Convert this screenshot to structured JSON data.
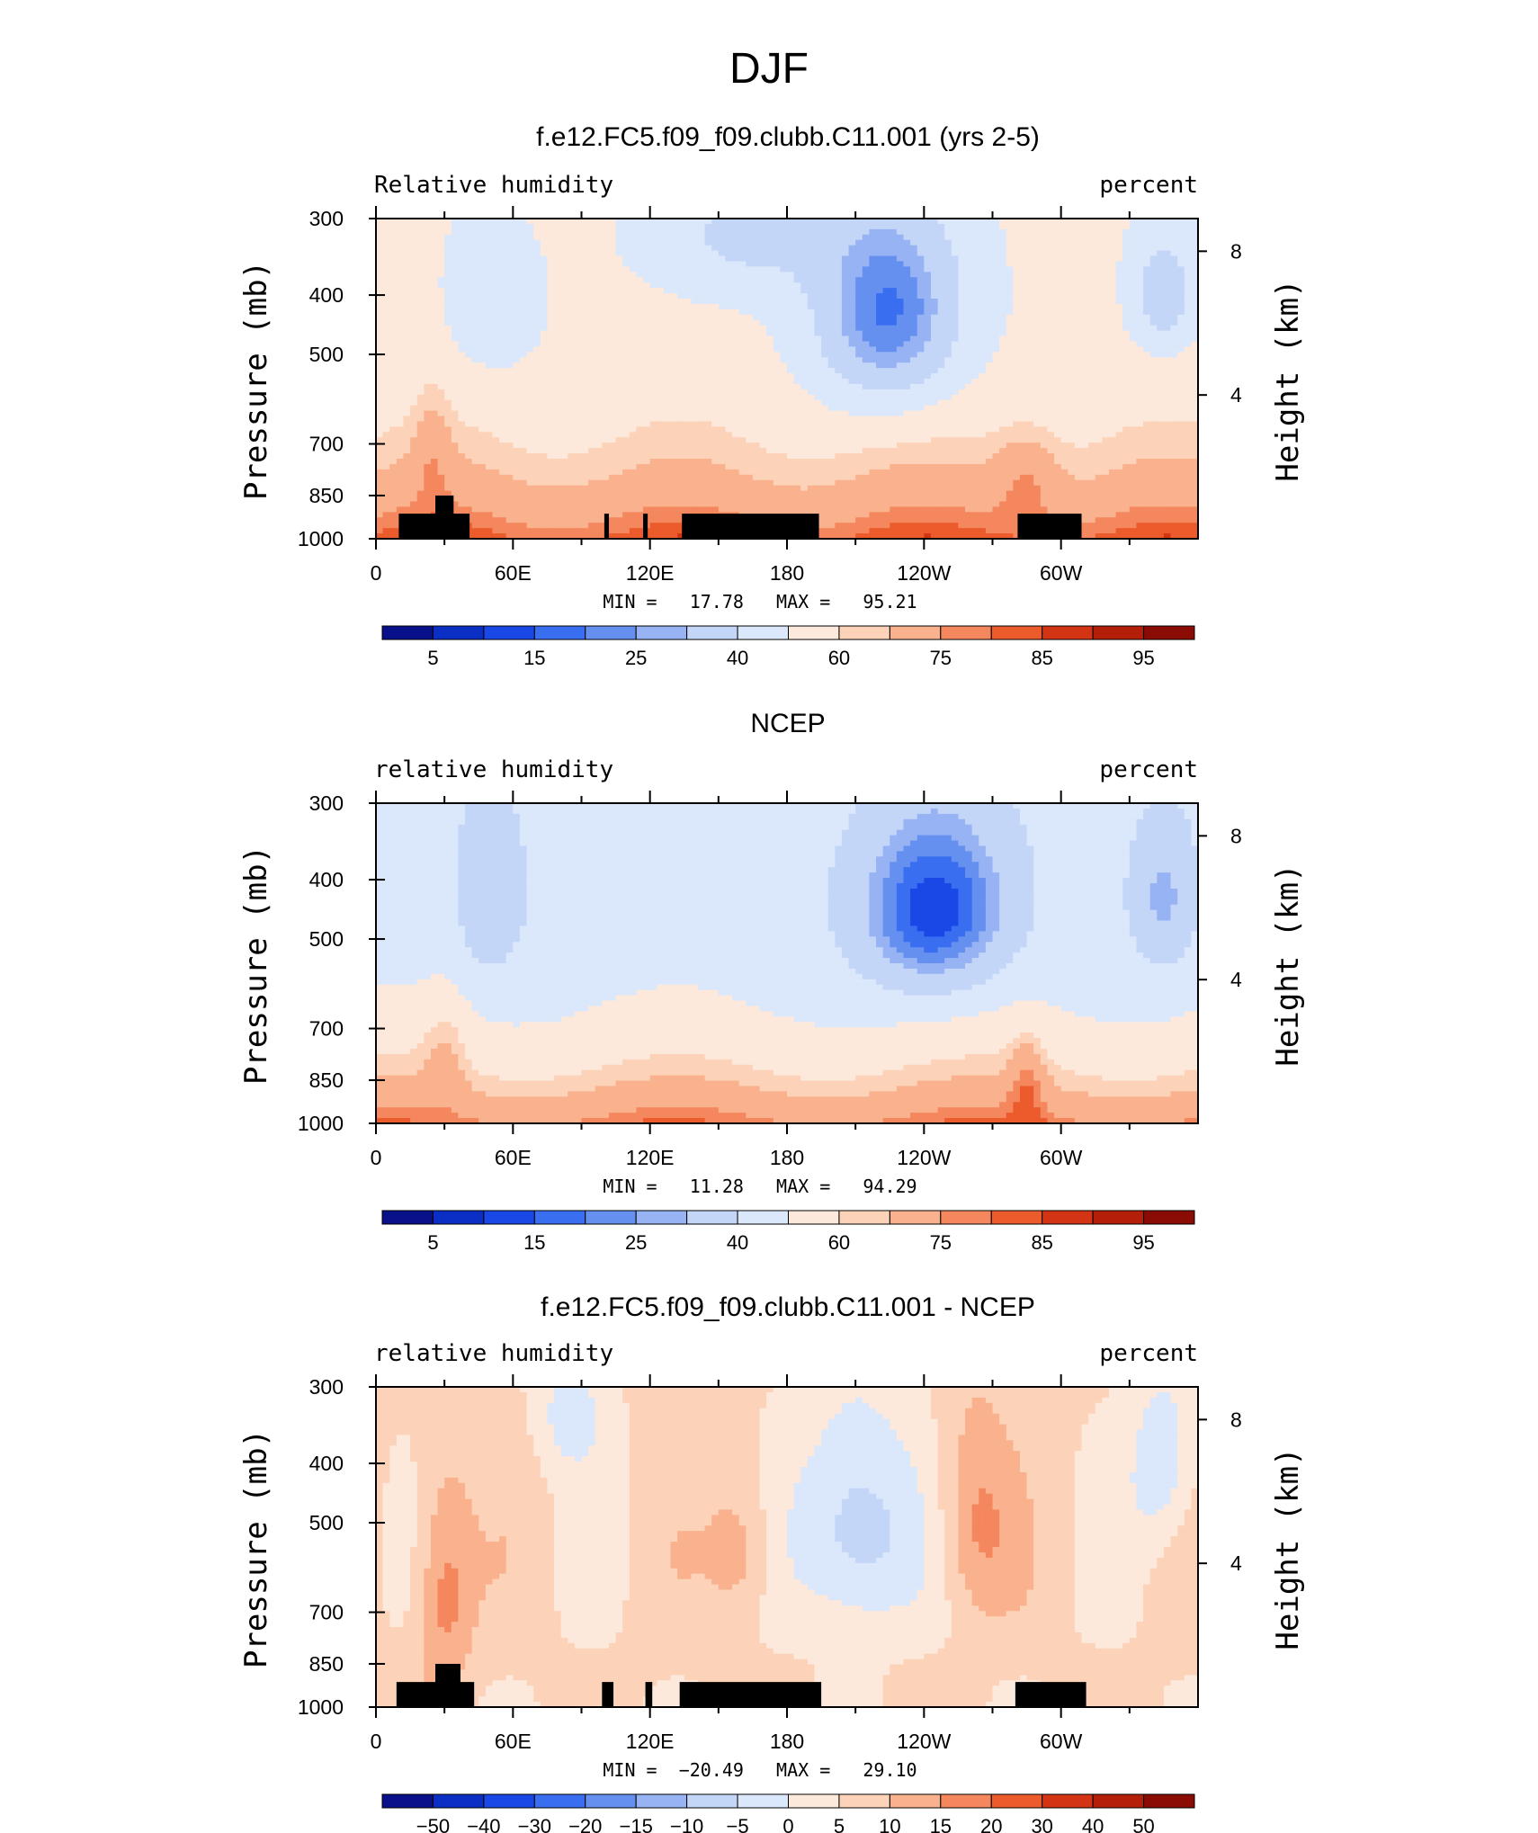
{
  "figure_title": "DJF",
  "panels": [
    {
      "title": "f.e12.FC5.f09_f09.clubb.C11.001 (yrs 2-5)",
      "left_label": "Relative humidity",
      "right_label": "percent",
      "stats": "MIN =   17.78   MAX =   95.21"
    },
    {
      "title": "NCEP",
      "left_label": "relative humidity",
      "right_label": "percent",
      "stats": "MIN =   11.28   MAX =   94.29"
    },
    {
      "title": "f.e12.FC5.f09_f09.clubb.C11.001 - NCEP",
      "left_label": "relative humidity",
      "right_label": "percent",
      "stats": "MIN =  −20.49   MAX =   29.10"
    }
  ],
  "axes": {
    "y_left_label": "Pressure (mb)",
    "y_right_label": "Height (km)",
    "y_ticks": [
      "300",
      "400",
      "500",
      "700",
      "850",
      "1000"
    ],
    "y_right_ticks": [
      "8",
      "4"
    ],
    "x_ticks": [
      "0",
      "60E",
      "120E",
      "180",
      "120W",
      "60W"
    ]
  },
  "colorbars": [
    {
      "labels": [
        "5",
        "15",
        "25",
        "40",
        "60",
        "75",
        "85",
        "95"
      ]
    },
    {
      "labels": [
        "5",
        "15",
        "25",
        "40",
        "60",
        "75",
        "85",
        "95"
      ]
    },
    {
      "labels": [
        "−50",
        "−40",
        "−30",
        "−20",
        "−15",
        "−10",
        "−5",
        "0",
        "5",
        "10",
        "15",
        "20",
        "30",
        "40",
        "50"
      ]
    }
  ],
  "colors": {
    "palette": [
      "#08108a",
      "#0b2fc4",
      "#1a48e6",
      "#3a6ef0",
      "#6590ef",
      "#97b3f3",
      "#c4d6f7",
      "#dbe7fb",
      "#fde9dc",
      "#fcd2b8",
      "#f9b28d",
      "#f4875d",
      "#ec5b2c",
      "#d33514",
      "#b41f0a",
      "#8a0c04"
    ],
    "terrain": "#000000"
  },
  "chart_data": [
    {
      "type": "heatmap",
      "title": "f.e12.FC5.f09_f09.clubb.C11.001 (yrs 2-5)",
      "variable": "Relative humidity",
      "units": "percent",
      "x": [
        "0",
        "60E",
        "120E",
        "180",
        "120W",
        "60W"
      ],
      "y_pressure_mb": [
        300,
        400,
        500,
        700,
        850,
        1000
      ],
      "y_height_km": [
        8,
        4
      ],
      "min": 17.78,
      "max": 95.21,
      "contour_levels": [
        5,
        10,
        15,
        20,
        25,
        30,
        40,
        50,
        60,
        65,
        75,
        80,
        85,
        90,
        95
      ]
    },
    {
      "type": "heatmap",
      "title": "NCEP",
      "variable": "relative humidity",
      "units": "percent",
      "x": [
        "0",
        "60E",
        "120E",
        "180",
        "120W",
        "60W"
      ],
      "y_pressure_mb": [
        300,
        400,
        500,
        700,
        850,
        1000
      ],
      "y_height_km": [
        8,
        4
      ],
      "min": 11.28,
      "max": 94.29,
      "contour_levels": [
        5,
        10,
        15,
        20,
        25,
        30,
        40,
        50,
        60,
        65,
        75,
        80,
        85,
        90,
        95
      ]
    },
    {
      "type": "heatmap",
      "title": "f.e12.FC5.f09_f09.clubb.C11.001 - NCEP",
      "variable": "relative humidity",
      "units": "percent",
      "x": [
        "0",
        "60E",
        "120E",
        "180",
        "120W",
        "60W"
      ],
      "y_pressure_mb": [
        300,
        400,
        500,
        700,
        850,
        1000
      ],
      "y_height_km": [
        8,
        4
      ],
      "min": -20.49,
      "max": 29.1,
      "contour_levels": [
        -50,
        -40,
        -30,
        -20,
        -15,
        -10,
        -5,
        0,
        5,
        10,
        15,
        20,
        30,
        40,
        50
      ]
    }
  ]
}
